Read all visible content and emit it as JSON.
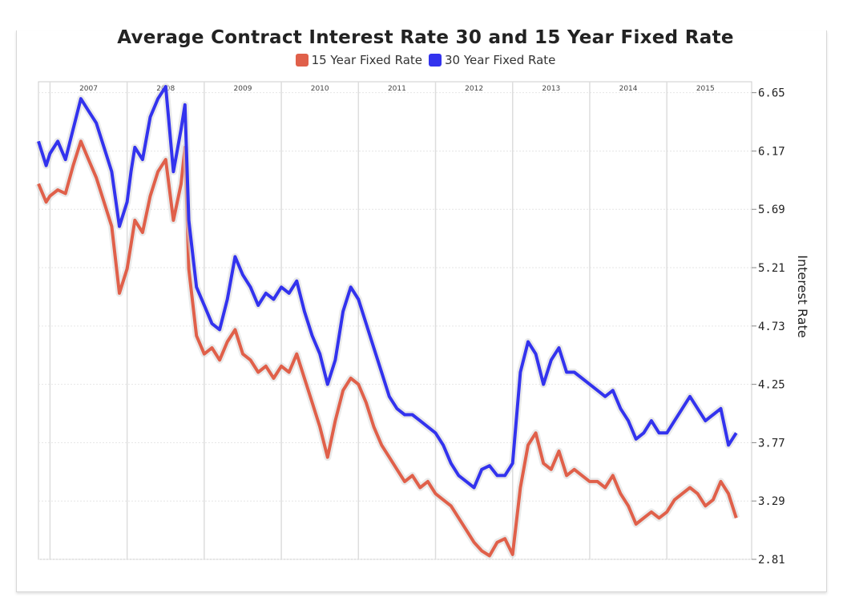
{
  "chart_data": {
    "type": "line",
    "title": "Average Contract Interest Rate 30 and 15 Year Fixed Rate",
    "xlabel": "",
    "ylabel": "Interest Rate",
    "x_ticks": [
      "2007",
      "2008",
      "2009",
      "2010",
      "2011",
      "2012",
      "2013",
      "2014",
      "2015"
    ],
    "y_ticks": [
      "6.65",
      "6.17",
      "5.69",
      "5.21",
      "4.73",
      "4.25",
      "3.77",
      "3.29",
      "2.81"
    ],
    "ylim": [
      2.81,
      6.74
    ],
    "xlim": [
      2006.85,
      2016.1
    ],
    "grid": true,
    "legend_position": "top-center",
    "series": [
      {
        "name": "15 Year Fixed Rate",
        "color": "#e0604a",
        "x": [
          2006.85,
          2006.95,
          2007.0,
          2007.1,
          2007.2,
          2007.3,
          2007.4,
          2007.5,
          2007.6,
          2007.7,
          2007.8,
          2007.9,
          2008.0,
          2008.05,
          2008.1,
          2008.2,
          2008.3,
          2008.4,
          2008.5,
          2008.6,
          2008.7,
          2008.75,
          2008.8,
          2008.9,
          2009.0,
          2009.1,
          2009.2,
          2009.3,
          2009.4,
          2009.5,
          2009.6,
          2009.7,
          2009.8,
          2009.9,
          2010.0,
          2010.1,
          2010.2,
          2010.3,
          2010.4,
          2010.5,
          2010.6,
          2010.7,
          2010.8,
          2010.9,
          2011.0,
          2011.1,
          2011.2,
          2011.3,
          2011.4,
          2011.5,
          2011.6,
          2011.7,
          2011.8,
          2011.9,
          2012.0,
          2012.1,
          2012.2,
          2012.3,
          2012.4,
          2012.5,
          2012.6,
          2012.7,
          2012.8,
          2012.9,
          2013.0,
          2013.1,
          2013.2,
          2013.3,
          2013.4,
          2013.5,
          2013.6,
          2013.7,
          2013.8,
          2013.9,
          2014.0,
          2014.1,
          2014.2,
          2014.3,
          2014.4,
          2014.5,
          2014.6,
          2014.7,
          2014.8,
          2014.9,
          2015.0,
          2015.1,
          2015.2,
          2015.3,
          2015.4,
          2015.5,
          2015.6,
          2015.7,
          2015.8,
          2015.9
        ],
        "values": [
          5.9,
          5.75,
          5.8,
          5.85,
          5.82,
          6.05,
          6.25,
          6.1,
          5.95,
          5.75,
          5.55,
          5.0,
          5.2,
          5.4,
          5.6,
          5.5,
          5.8,
          6.0,
          6.1,
          5.6,
          5.9,
          6.2,
          5.2,
          4.65,
          4.5,
          4.55,
          4.45,
          4.6,
          4.7,
          4.5,
          4.45,
          4.35,
          4.4,
          4.3,
          4.4,
          4.35,
          4.5,
          4.3,
          4.1,
          3.9,
          3.65,
          3.95,
          4.2,
          4.3,
          4.25,
          4.1,
          3.9,
          3.75,
          3.65,
          3.55,
          3.45,
          3.5,
          3.4,
          3.45,
          3.35,
          3.3,
          3.25,
          3.15,
          3.05,
          2.95,
          2.88,
          2.84,
          2.95,
          2.98,
          2.85,
          3.4,
          3.75,
          3.85,
          3.6,
          3.55,
          3.7,
          3.5,
          3.55,
          3.5,
          3.45,
          3.45,
          3.4,
          3.5,
          3.35,
          3.25,
          3.1,
          3.15,
          3.2,
          3.15,
          3.2,
          3.3,
          3.35,
          3.4,
          3.35,
          3.25,
          3.3,
          3.45,
          3.35,
          3.15
        ]
      },
      {
        "name": "30 Year Fixed Rate",
        "color": "#3333ee",
        "x": [
          2006.85,
          2006.95,
          2007.0,
          2007.1,
          2007.2,
          2007.3,
          2007.4,
          2007.5,
          2007.6,
          2007.7,
          2007.8,
          2007.9,
          2008.0,
          2008.05,
          2008.1,
          2008.2,
          2008.3,
          2008.4,
          2008.5,
          2008.6,
          2008.7,
          2008.75,
          2008.8,
          2008.9,
          2009.0,
          2009.1,
          2009.2,
          2009.3,
          2009.4,
          2009.5,
          2009.6,
          2009.7,
          2009.8,
          2009.9,
          2010.0,
          2010.1,
          2010.2,
          2010.3,
          2010.4,
          2010.5,
          2010.6,
          2010.7,
          2010.8,
          2010.9,
          2011.0,
          2011.1,
          2011.2,
          2011.3,
          2011.4,
          2011.5,
          2011.6,
          2011.7,
          2011.8,
          2011.9,
          2012.0,
          2012.1,
          2012.2,
          2012.3,
          2012.4,
          2012.5,
          2012.6,
          2012.7,
          2012.8,
          2012.9,
          2013.0,
          2013.1,
          2013.2,
          2013.3,
          2013.4,
          2013.5,
          2013.6,
          2013.7,
          2013.8,
          2013.9,
          2014.0,
          2014.1,
          2014.2,
          2014.3,
          2014.4,
          2014.5,
          2014.6,
          2014.7,
          2014.8,
          2014.9,
          2015.0,
          2015.1,
          2015.2,
          2015.3,
          2015.4,
          2015.5,
          2015.6,
          2015.7,
          2015.8,
          2015.9
        ],
        "values": [
          6.25,
          6.05,
          6.15,
          6.25,
          6.1,
          6.35,
          6.6,
          6.5,
          6.4,
          6.2,
          6.0,
          5.55,
          5.75,
          6.0,
          6.2,
          6.1,
          6.45,
          6.6,
          6.7,
          6.0,
          6.35,
          6.55,
          5.6,
          5.05,
          4.9,
          4.75,
          4.7,
          4.95,
          5.3,
          5.15,
          5.05,
          4.9,
          5.0,
          4.95,
          5.05,
          5.0,
          5.1,
          4.85,
          4.65,
          4.5,
          4.25,
          4.45,
          4.85,
          5.05,
          4.95,
          4.75,
          4.55,
          4.35,
          4.15,
          4.05,
          4.0,
          4.0,
          3.95,
          3.9,
          3.85,
          3.75,
          3.6,
          3.5,
          3.45,
          3.4,
          3.55,
          3.58,
          3.5,
          3.5,
          3.6,
          4.35,
          4.6,
          4.5,
          4.25,
          4.45,
          4.55,
          4.35,
          4.35,
          4.3,
          4.25,
          4.2,
          4.15,
          4.2,
          4.05,
          3.95,
          3.8,
          3.85,
          3.95,
          3.85,
          3.85,
          3.95,
          4.05,
          4.15,
          4.05,
          3.95,
          4.0,
          4.05,
          3.75,
          3.85
        ]
      }
    ]
  }
}
